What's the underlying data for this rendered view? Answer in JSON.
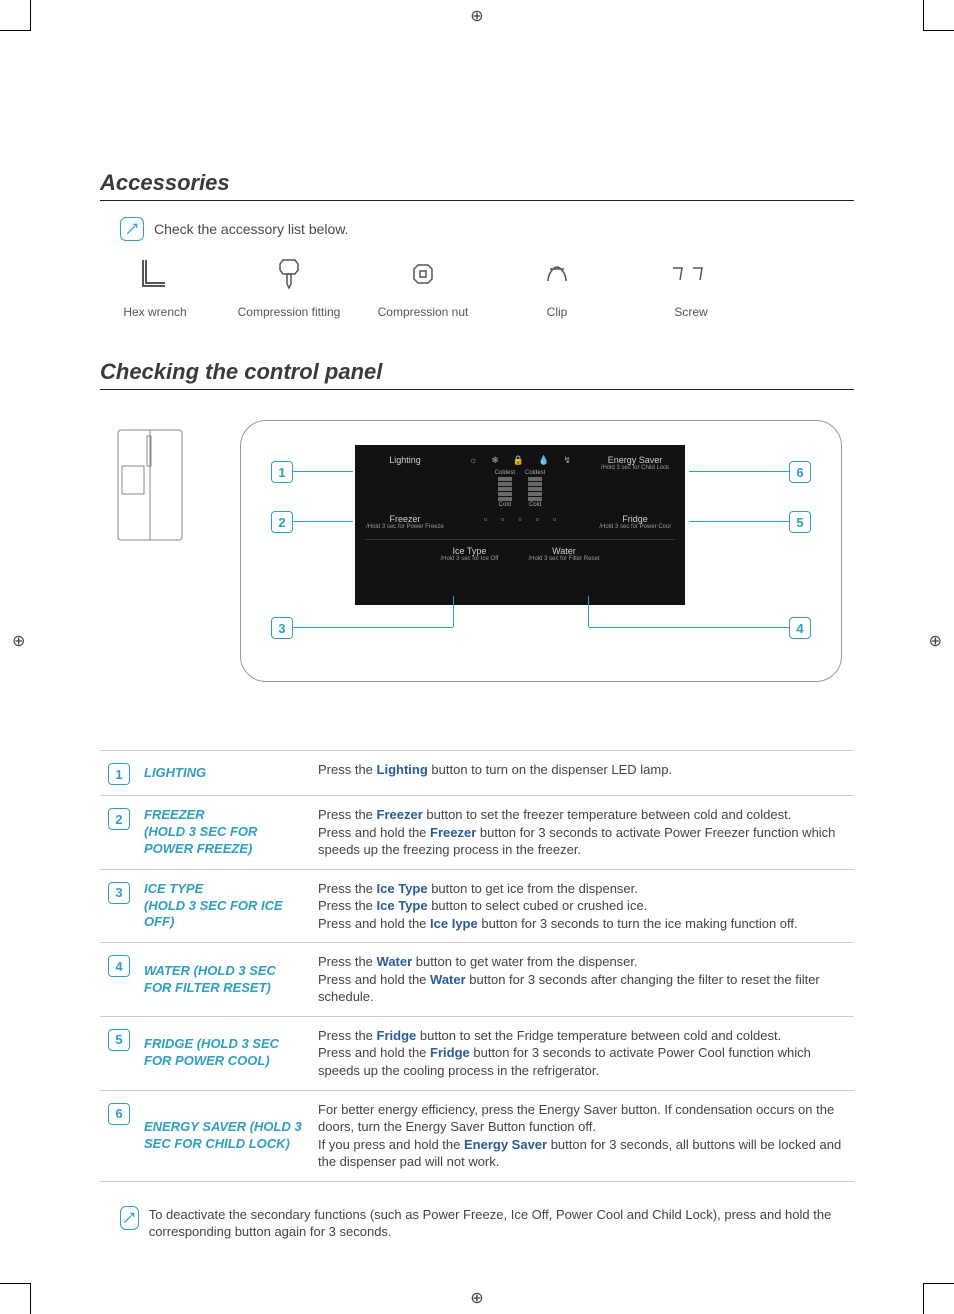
{
  "colors": {
    "accent": "#2aa0c8",
    "link": "#2a5aa0",
    "text": "#4a4a4a",
    "panel_bg": "#111111"
  },
  "section1": {
    "title": "Accessories",
    "note": "Check the accessory list below.",
    "items": [
      {
        "label": "Hex wrench"
      },
      {
        "label": "Compression fitting"
      },
      {
        "label": "Compression nut"
      },
      {
        "label": "Clip"
      },
      {
        "label": "Screw"
      }
    ]
  },
  "section2": {
    "title": "Checking the control panel",
    "panel": {
      "left_top": {
        "label": "Lighting"
      },
      "left_mid": {
        "label": "Freezer",
        "sub": "/Hold 3 sec for Power Freeze"
      },
      "right_top": {
        "label": "Energy Saver",
        "sub": "/Hold 3 sec for Child Lock"
      },
      "right_mid": {
        "label": "Fridge",
        "sub": "/Hold 3 sec for Power Cool"
      },
      "bot_left": {
        "label": "Ice Type",
        "sub": "/Hold 3 sec for Ice Off"
      },
      "bot_right": {
        "label": "Water",
        "sub": "/Hold 3 sec for Filter Reset"
      },
      "scale_top": "Coldest",
      "scale_bot": "Cold"
    },
    "callouts": {
      "1": "1",
      "2": "2",
      "3": "3",
      "4": "4",
      "5": "5",
      "6": "6"
    }
  },
  "rows": [
    {
      "num": "1",
      "title": "LIGHTING",
      "desc": "Press the <b>Lighting</b> button to turn on the dispenser LED lamp."
    },
    {
      "num": "2",
      "title": "FREEZER<br>(HOLD 3 SEC FOR POWER FREEZE)",
      "desc": "Press the <b>Freezer</b> button to set the freezer temperature between cold and coldest.<br>Press and hold the <b>Freezer</b> button for 3 seconds to activate Power Freezer function which speeds up the freezing process in the freezer."
    },
    {
      "num": "3",
      "title": "ICE TYPE<br>(HOLD 3 SEC FOR ICE OFF)",
      "desc": "Press the <b>Ice Type</b> button to get ice from the dispenser.<br>Press the <b>Ice Type</b> button to select cubed or crushed ice.<br>Press and hold the <b>Ice Iype</b> button for 3 seconds to turn the ice making function off."
    },
    {
      "num": "4",
      "title": "WATER (HOLD 3 SEC FOR FILTER RESET)",
      "desc": "Press the <b>Water</b> button to get water from the dispenser.<br>Press and hold the <b>Water</b> button for 3 seconds after changing the filter to reset the filter schedule."
    },
    {
      "num": "5",
      "title": "FRIDGE (HOLD 3 SEC FOR POWER COOL)",
      "desc": "Press the <b>Fridge</b> button to set the Fridge temperature between cold and coldest.<br>Press and hold the <b>Fridge</b> button for 3 seconds to activate Power Cool function which speeds up the cooling process in the refrigerator."
    },
    {
      "num": "6",
      "title": "ENERGY SAVER (HOLD 3 SEC FOR CHILD LOCK)",
      "desc": "For better energy efficiency, press the Energy Saver button. If condensation occurs on the doors, turn the Energy Saver Button function off.<br>If you press and hold the <b>Energy Saver</b> button for 3 seconds, all buttons will be locked and the dispenser pad will not work."
    }
  ],
  "footnote": "To deactivate the secondary functions (such as Power Freeze, Ice Off, Power Cool and Child Lock), press and hold the corresponding button again for 3 seconds."
}
